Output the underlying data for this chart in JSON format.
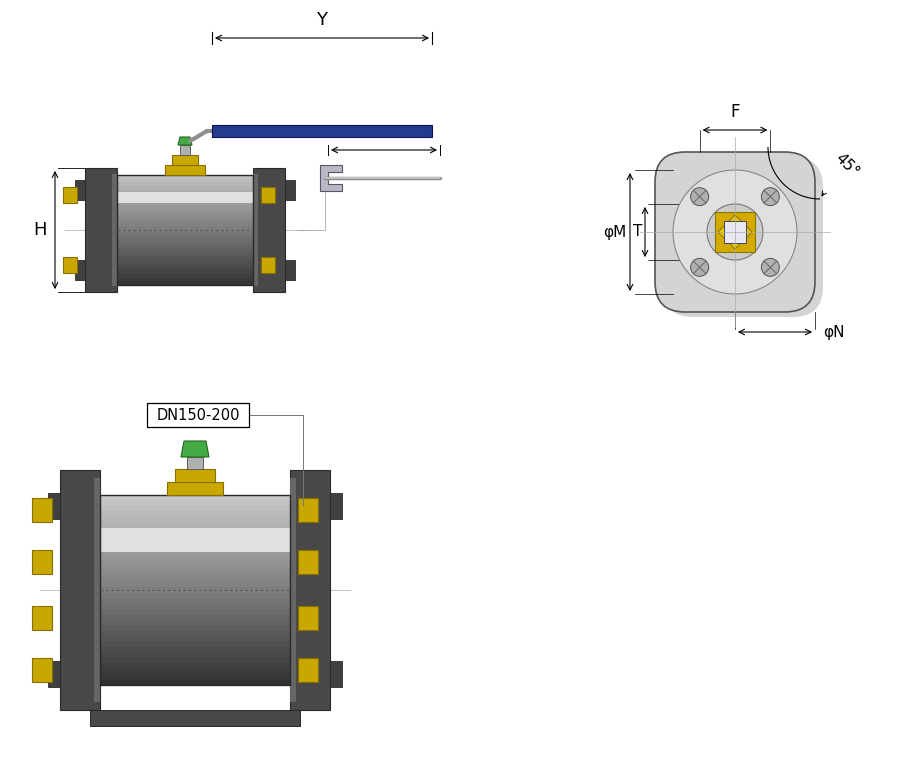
{
  "bg_color": "#ffffff",
  "fig_width": 8.99,
  "fig_height": 7.72,
  "dpi": 100,
  "label_H": "H",
  "label_Y": "Y",
  "label_F": "F",
  "label_T": "T",
  "label_M": "φM",
  "label_N": "φN",
  "label_45": "45°",
  "label_DN": "DN150-200",
  "handle_color": "#253c8c",
  "body_dark": "#404040",
  "body_mid": "#787878",
  "body_light": "#c8c8c8",
  "flange_dark": "#383838",
  "flange_mid": "#525252",
  "bolt_color": "#c8a800",
  "bolt_dark": "#886e00",
  "stem_green": "#44aa44",
  "stem_green_dark": "#226622",
  "line_color": "#000000",
  "dim_line_color": "#333333",
  "face_bg": "#d0d0d0",
  "face_light": "#e8e8e8"
}
